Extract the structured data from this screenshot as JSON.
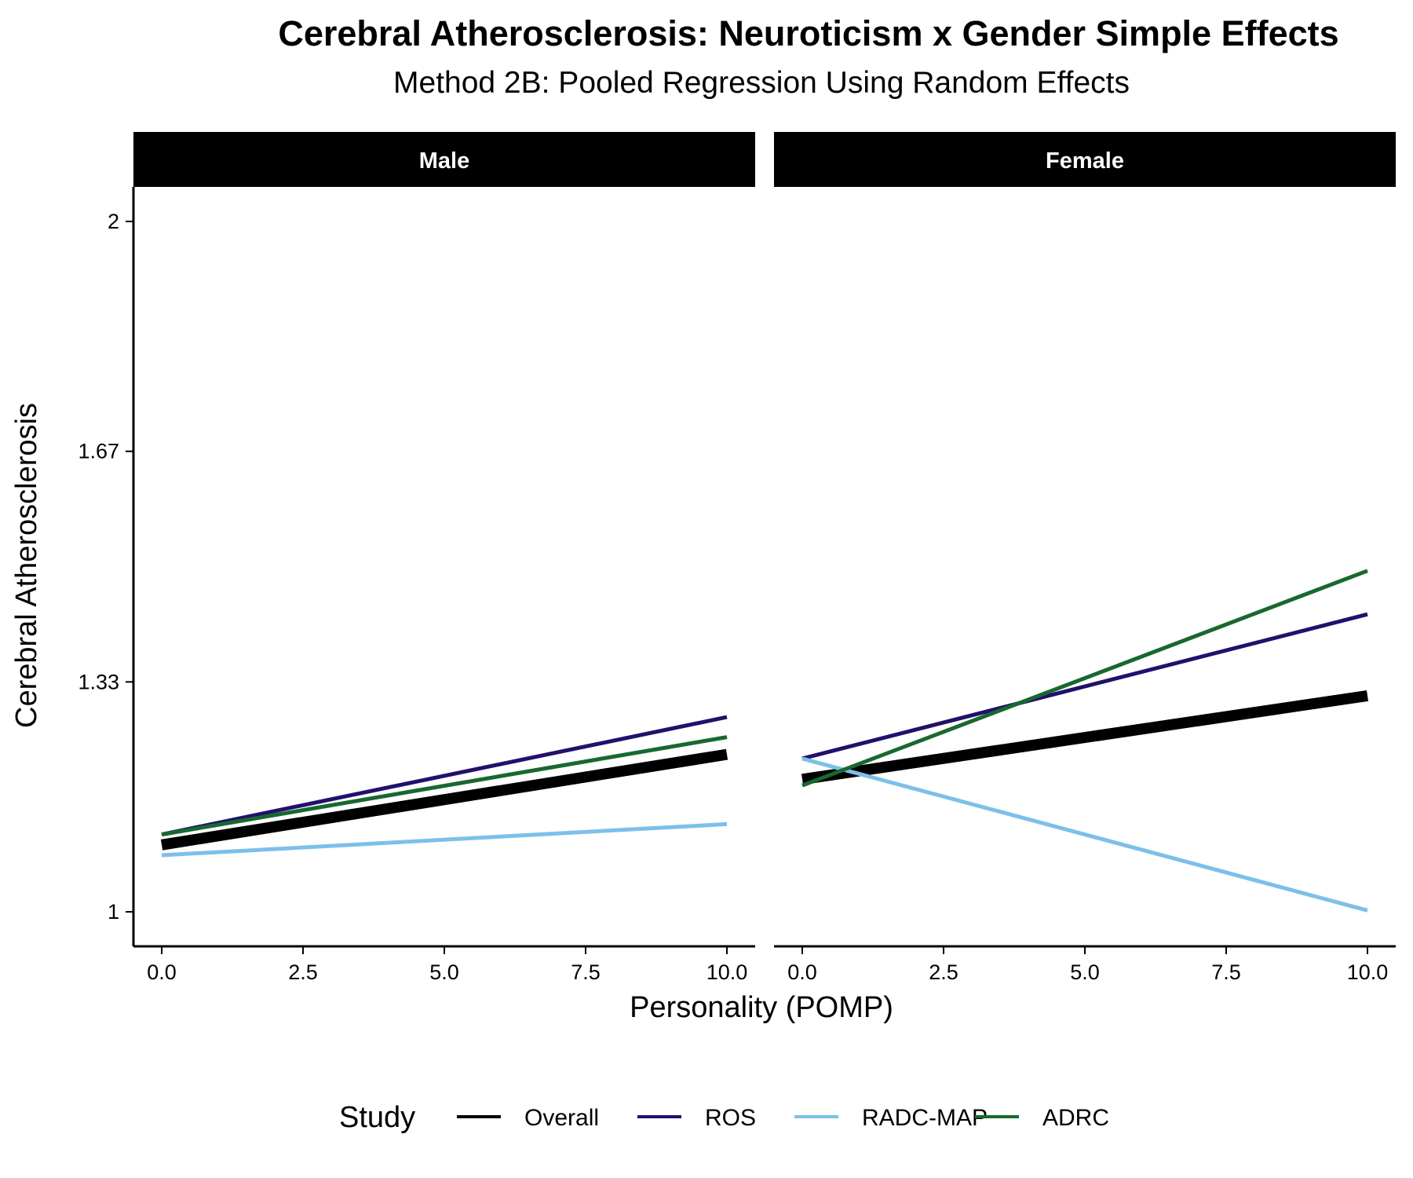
{
  "chart_data": {
    "type": "line",
    "title": "Cerebral Atherosclerosis: Neuroticism x Gender Simple Effects",
    "subtitle": "Method 2B: Pooled Regression Using Random Effects",
    "xlabel": "Personality (POMP)",
    "ylabel": "Cerebral Atherosclerosis",
    "xlim": [
      -0.5,
      10.5
    ],
    "ylim": [
      0.95,
      2.05
    ],
    "x_ticks": [
      "0.0",
      "2.5",
      "5.0",
      "7.5",
      "10.0"
    ],
    "x_tick_values": [
      0,
      2.5,
      5,
      7.5,
      10
    ],
    "y_ticks": [
      "1",
      "1.33",
      "1.67",
      "2"
    ],
    "y_tick_values": [
      1,
      1.333,
      1.667,
      2
    ],
    "grid": false,
    "legend": {
      "title": "Study",
      "position": "bottom",
      "entries": [
        "Overall",
        "ROS",
        "RADC-MAP",
        "ADRC"
      ]
    },
    "panels": [
      {
        "label": "Male",
        "series": [
          {
            "name": "Overall",
            "color": "#000000",
            "x": [
              0,
              10
            ],
            "y": [
              1.097,
              1.228
            ]
          },
          {
            "name": "ROS",
            "color": "#22106b",
            "x": [
              0,
              10
            ],
            "y": [
              1.112,
              1.282
            ]
          },
          {
            "name": "RADC-MAP",
            "color": "#7cc0ea",
            "x": [
              0,
              10
            ],
            "y": [
              1.082,
              1.127
            ]
          },
          {
            "name": "ADRC",
            "color": "#18682f",
            "x": [
              0,
              10
            ],
            "y": [
              1.112,
              1.253
            ]
          }
        ]
      },
      {
        "label": "Female",
        "series": [
          {
            "name": "Overall",
            "color": "#000000",
            "x": [
              0,
              10
            ],
            "y": [
              1.192,
              1.313
            ]
          },
          {
            "name": "ROS",
            "color": "#22106b",
            "x": [
              0,
              10
            ],
            "y": [
              1.222,
              1.431
            ]
          },
          {
            "name": "RADC-MAP",
            "color": "#7cc0ea",
            "x": [
              0,
              10
            ],
            "y": [
              1.222,
              1.002
            ]
          },
          {
            "name": "ADRC",
            "color": "#18682f",
            "x": [
              0,
              10
            ],
            "y": [
              1.183,
              1.494
            ]
          }
        ]
      }
    ]
  }
}
